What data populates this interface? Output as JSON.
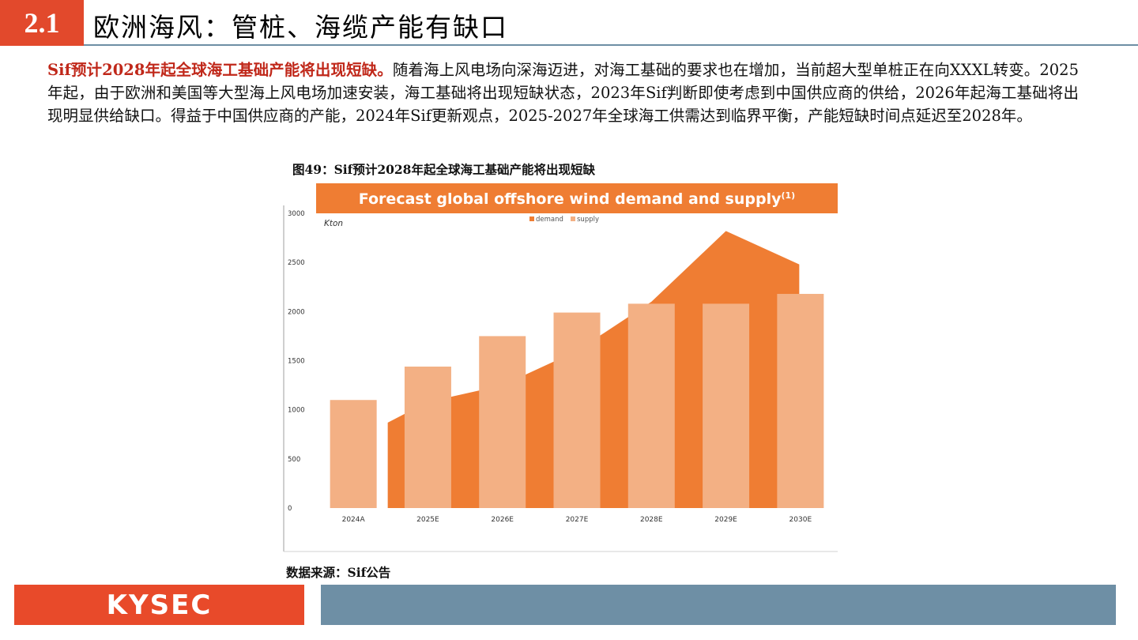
{
  "section": {
    "number": "2.1",
    "title": "欧洲海风：管桩、海缆产能有缺口"
  },
  "body": {
    "lead": "Sif预计2028年起全球海工基础产能将出现短缺。",
    "text": "随着海上风电场向深海迈进，对海工基础的要求也在增加，当前超大型单桩正在向XXXL转变。2025年起，由于欧洲和美国等大型海上风电场加速安装，海工基础将出现短缺状态，2023年Sif判断即使考虑到中国供应商的供给，2026年起海工基础将出现明显供给缺口。得益于中国供应商的产能，2024年Sif更新观点，2025-2027年全球海工供需达到临界平衡，产能短缺时间点延迟至2028年。"
  },
  "figure": {
    "caption": "图49：Sif预计2028年起全球海工基础产能将出现短缺",
    "source": "数据来源：Sif公告"
  },
  "chart_data": {
    "type": "bar",
    "title": "Forecast global offshore wind demand and supply",
    "title_superscript": "(1)",
    "unit_label": "Kton",
    "categories": [
      "2024A",
      "2025E",
      "2026E",
      "2027E",
      "2028E",
      "2029E",
      "2030E"
    ],
    "series": [
      {
        "name": "demand",
        "type": "area",
        "color": "#ef7d33",
        "values": [
          870,
          1080,
          1250,
          1600,
          2100,
          2820,
          2480
        ]
      },
      {
        "name": "supply",
        "type": "bar",
        "color": "#f3b084",
        "values": [
          1100,
          1440,
          1750,
          1990,
          2080,
          2080,
          2180
        ]
      }
    ],
    "yticks": [
      0,
      500,
      1000,
      1500,
      2000,
      2500,
      3000
    ],
    "ylim": [
      0,
      3000
    ],
    "title_bar_color": "#ef7d33",
    "legend_position": "top-center"
  },
  "footer": {
    "logo_text": "KYSEC",
    "colors": {
      "logo_bg": "#e84a2a",
      "bar_bg": "#6e8fa5"
    }
  }
}
